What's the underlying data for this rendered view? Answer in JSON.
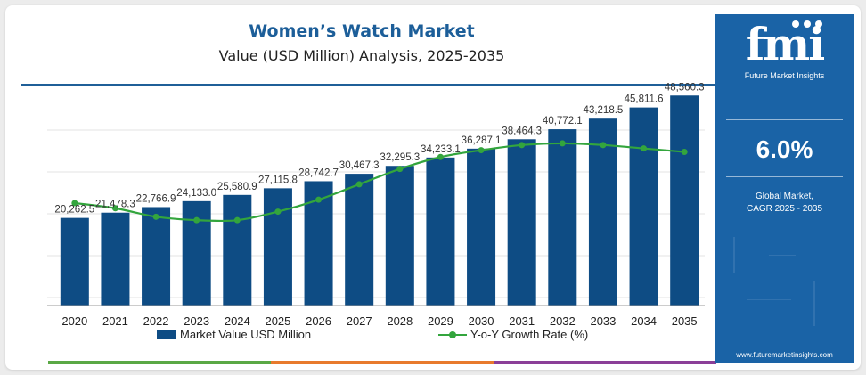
{
  "header": {
    "title": "Women’s Watch Market",
    "subtitle": "Value (USD Million) Analysis, 2025-2035"
  },
  "sidebar": {
    "logo_text": "fmi",
    "logo_tagline": "Future Market Insights",
    "cagr_value": "6.0%",
    "cagr_label_line1": "Global Market,",
    "cagr_label_line2": "CAGR 2025 - 2035",
    "url": "www.futuremarketinsights.com"
  },
  "legend": {
    "bar_label": "Market Value USD Million",
    "line_label": "Y-o-Y Growth Rate (%)"
  },
  "colors": {
    "bar": "#0e4c84",
    "line": "#33a53d",
    "title": "#1c5e99",
    "panel": "#1a63a6",
    "bottom_segments": [
      "#5aa845",
      "#e87a2d",
      "#8b3f98"
    ]
  },
  "chart_data": {
    "type": "bar",
    "categories": [
      "2020",
      "2021",
      "2022",
      "2023",
      "2024",
      "2025",
      "2026",
      "2027",
      "2028",
      "2029",
      "2030",
      "2031",
      "2032",
      "2033",
      "2034",
      "2035"
    ],
    "series": [
      {
        "name": "Market Value USD Million",
        "type": "bar",
        "values": [
          20262.5,
          21478.3,
          22766.9,
          24133.0,
          25580.9,
          27115.8,
          28742.7,
          30467.3,
          32295.3,
          34233.1,
          36287.1,
          38464.3,
          40772.1,
          43218.5,
          45811.6,
          48560.3
        ],
        "labels": [
          "20,262.5",
          "21,478.3",
          "22,766.9",
          "24,133.0",
          "25,580.9",
          "27,115.8",
          "28,742.7",
          "30,467.3",
          "32,295.3",
          "34,233.1",
          "36,287.1",
          "38,464.3",
          "40,772.1",
          "43,218.5",
          "45,811.6",
          "48,560.3"
        ]
      },
      {
        "name": "Y-o-Y Growth Rate (%)",
        "type": "line",
        "values": [
          6.0,
          5.7,
          5.2,
          5.0,
          5.0,
          5.5,
          6.2,
          7.1,
          8.0,
          8.7,
          9.1,
          9.4,
          9.5,
          9.4,
          9.2,
          9.0
        ]
      }
    ],
    "ylim": [
      0,
      55000
    ],
    "y2lim": [
      0,
      12
    ],
    "grid": true,
    "legend_position": "bottom"
  }
}
